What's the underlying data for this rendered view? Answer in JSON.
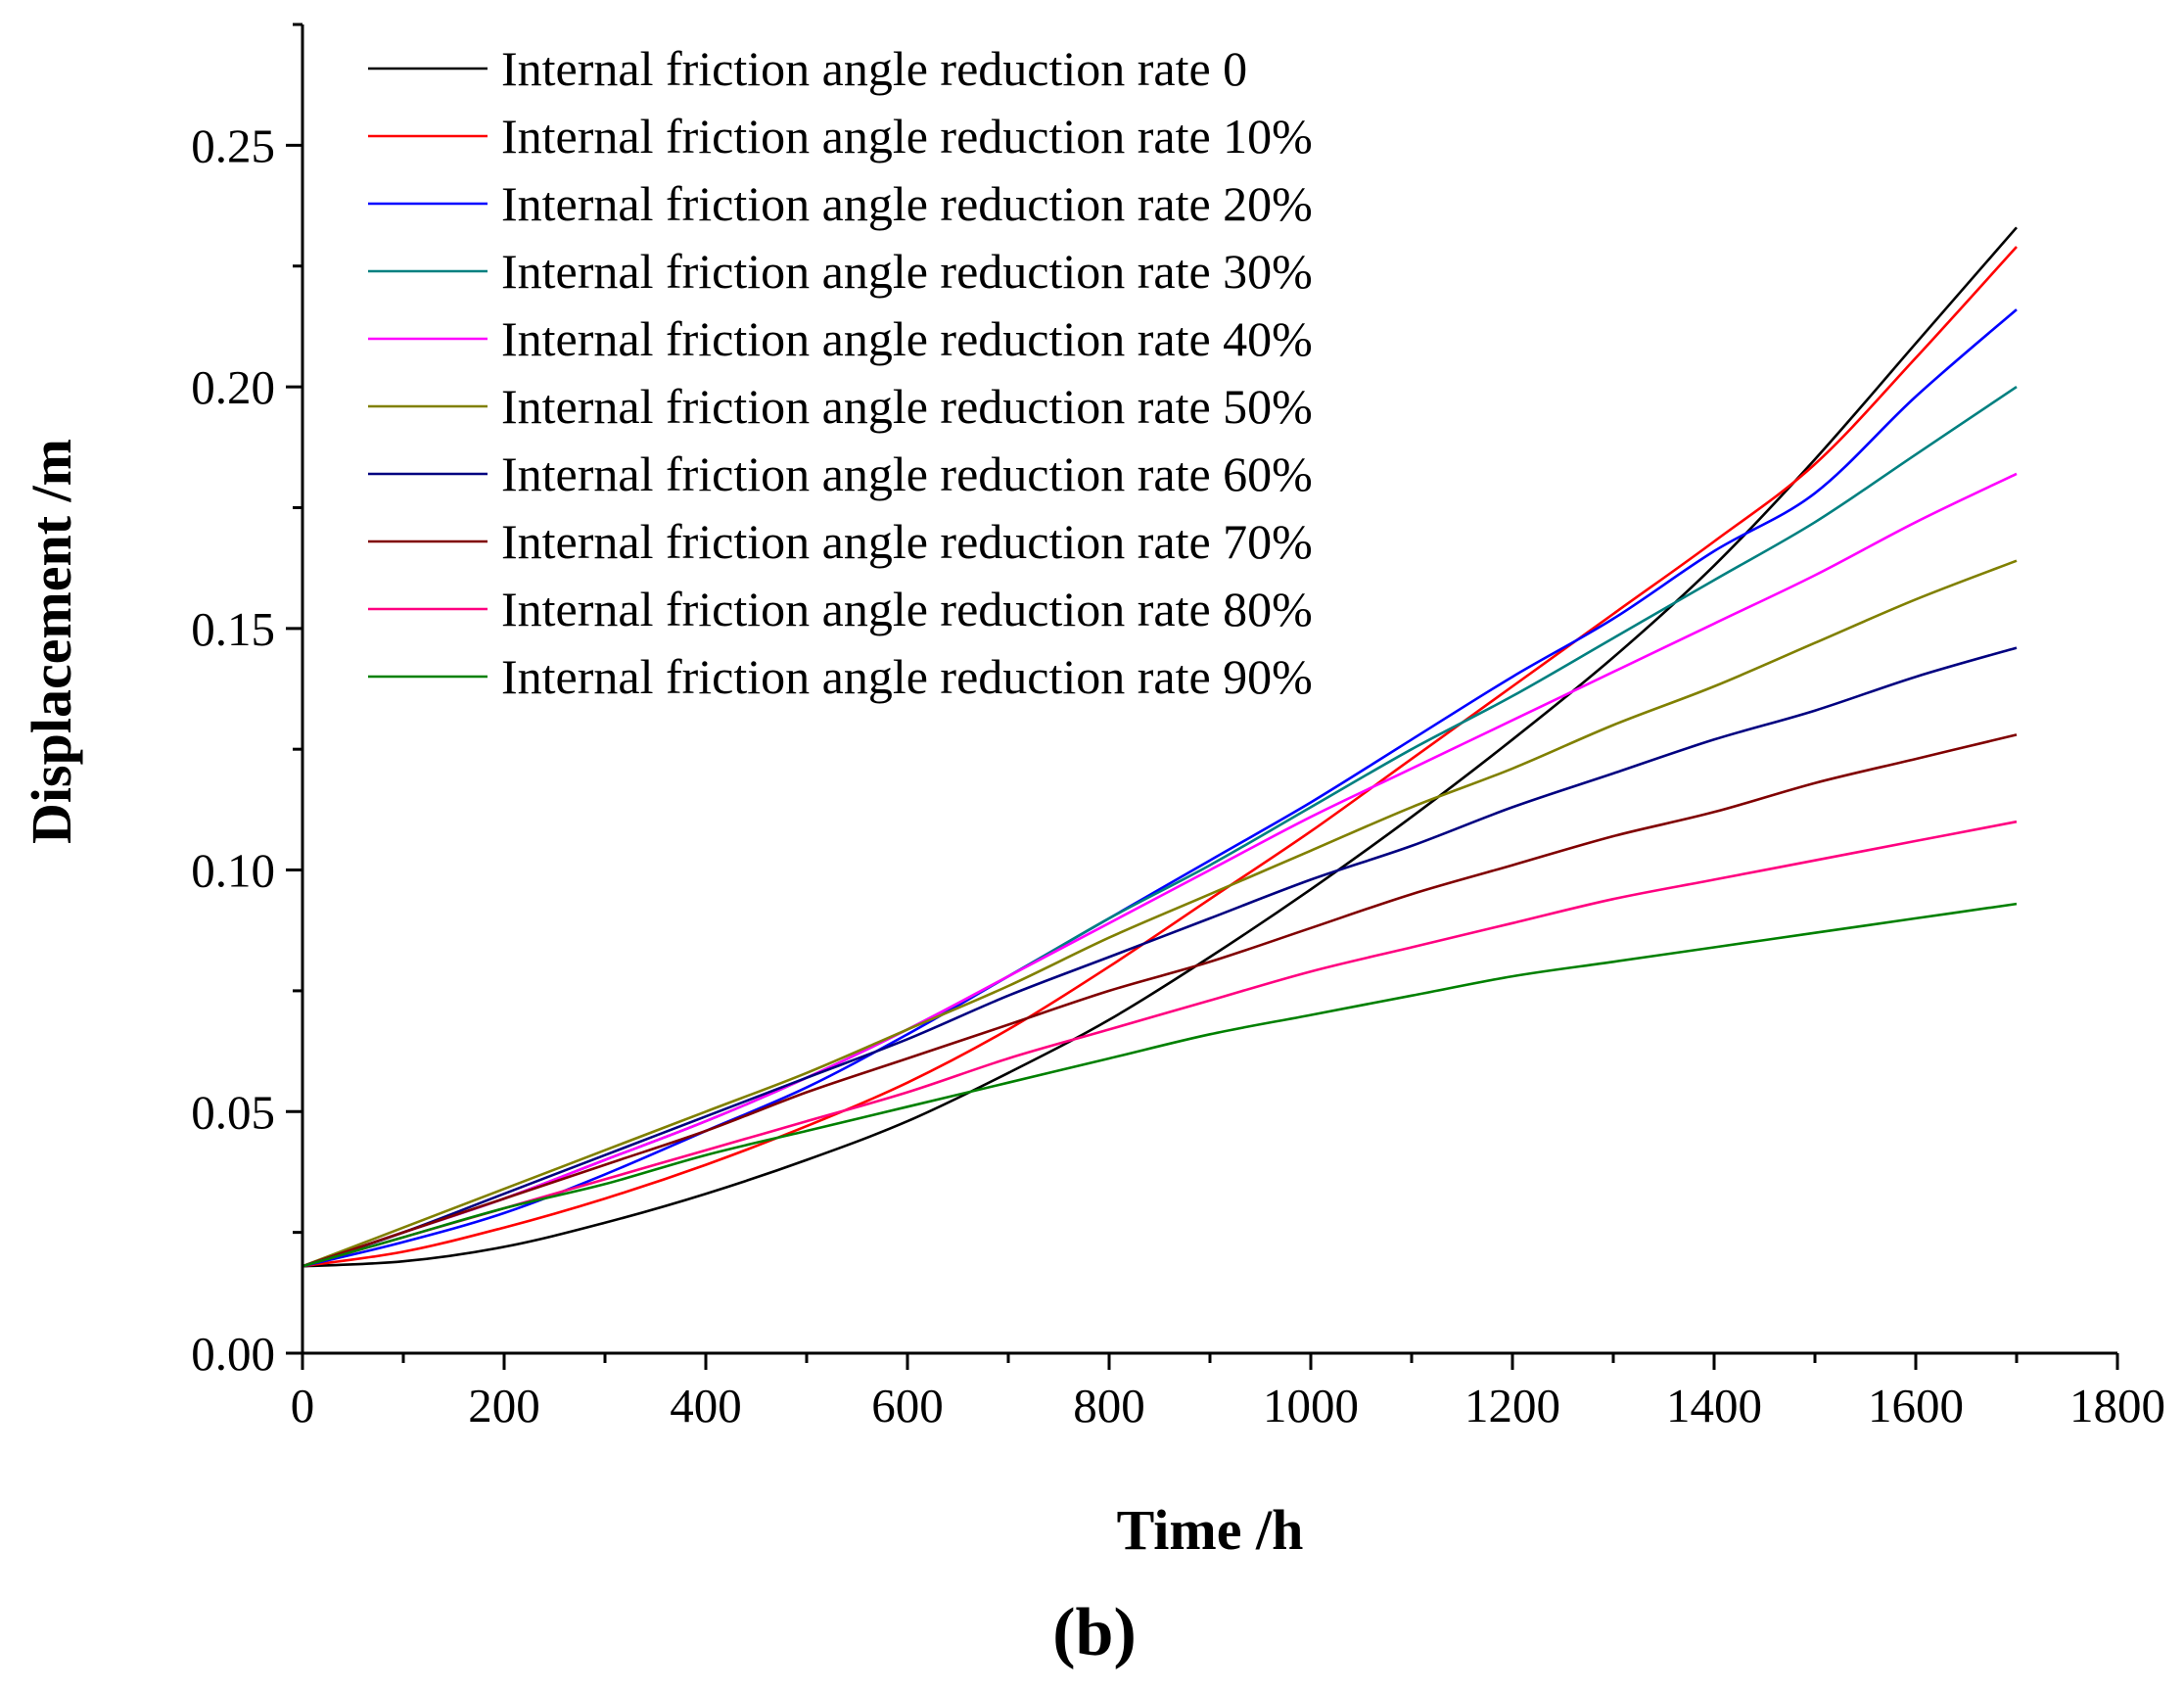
{
  "chart_data": {
    "type": "line",
    "title": "",
    "xlabel": "Time /h",
    "ylabel": "Displacement /m",
    "panel_label": "(b)",
    "xlim": [
      0,
      1800
    ],
    "ylim": [
      0,
      0.275
    ],
    "xticks": [
      0,
      200,
      400,
      600,
      800,
      1000,
      1200,
      1400,
      1600,
      1800
    ],
    "xtick_labels": [
      "0",
      "200",
      "400",
      "600",
      "800",
      "1000",
      "1200",
      "1400",
      "1600",
      "1800"
    ],
    "yticks": [
      0,
      0.05,
      0.1,
      0.15,
      0.2,
      0.25
    ],
    "ytick_labels": [
      "0.00",
      "0.05",
      "0.10",
      "0.15",
      "0.20",
      "0.25"
    ],
    "legend_position": "top-left",
    "grid": false,
    "x": [
      0,
      100,
      200,
      300,
      400,
      500,
      600,
      700,
      800,
      900,
      1000,
      1100,
      1200,
      1300,
      1400,
      1500,
      1600,
      1700
    ],
    "series": [
      {
        "name": "Internal friction angle reduction rate 0",
        "color": "#000000",
        "values": [
          0.018,
          0.019,
          0.022,
          0.027,
          0.033,
          0.04,
          0.048,
          0.058,
          0.069,
          0.082,
          0.096,
          0.111,
          0.127,
          0.144,
          0.163,
          0.185,
          0.209,
          0.233
        ]
      },
      {
        "name": "Internal friction angle reduction rate 10%",
        "color": "#ff0000",
        "values": [
          0.018,
          0.021,
          0.026,
          0.032,
          0.039,
          0.047,
          0.056,
          0.067,
          0.08,
          0.094,
          0.108,
          0.123,
          0.138,
          0.153,
          0.168,
          0.184,
          0.206,
          0.229
        ]
      },
      {
        "name": "Internal friction angle reduction rate 20%",
        "color": "#0000ff",
        "values": [
          0.018,
          0.023,
          0.029,
          0.037,
          0.046,
          0.055,
          0.066,
          0.078,
          0.09,
          0.102,
          0.114,
          0.127,
          0.14,
          0.152,
          0.166,
          0.178,
          0.198,
          0.216
        ]
      },
      {
        "name": "Internal friction angle reduction rate 30%",
        "color": "#008080",
        "values": [
          0.018,
          0.025,
          0.032,
          0.04,
          0.048,
          0.057,
          0.067,
          0.078,
          0.09,
          0.101,
          0.113,
          0.125,
          0.136,
          0.148,
          0.16,
          0.172,
          0.186,
          0.2
        ]
      },
      {
        "name": "Internal friction angle reduction rate 40%",
        "color": "#ff00ff",
        "values": [
          0.018,
          0.025,
          0.032,
          0.04,
          0.048,
          0.057,
          0.067,
          0.078,
          0.089,
          0.1,
          0.111,
          0.121,
          0.131,
          0.141,
          0.151,
          0.161,
          0.172,
          0.182
        ]
      },
      {
        "name": "Internal friction angle reduction rate 50%",
        "color": "#808000",
        "values": [
          0.018,
          0.026,
          0.034,
          0.042,
          0.05,
          0.058,
          0.067,
          0.076,
          0.086,
          0.095,
          0.104,
          0.113,
          0.121,
          0.13,
          0.138,
          0.147,
          0.156,
          0.164
        ]
      },
      {
        "name": "Internal friction angle reduction rate 60%",
        "color": "#000080",
        "values": [
          0.018,
          0.025,
          0.033,
          0.041,
          0.049,
          0.057,
          0.065,
          0.074,
          0.082,
          0.09,
          0.098,
          0.105,
          0.113,
          0.12,
          0.127,
          0.133,
          0.14,
          0.146
        ]
      },
      {
        "name": "Internal friction angle reduction rate 70%",
        "color": "#800000",
        "values": [
          0.018,
          0.025,
          0.032,
          0.039,
          0.046,
          0.054,
          0.061,
          0.068,
          0.075,
          0.081,
          0.088,
          0.095,
          0.101,
          0.107,
          0.112,
          0.118,
          0.123,
          0.128
        ]
      },
      {
        "name": "Internal friction angle reduction rate 80%",
        "color": "#ff0080",
        "values": [
          0.018,
          0.024,
          0.03,
          0.036,
          0.042,
          0.048,
          0.054,
          0.061,
          0.067,
          0.073,
          0.079,
          0.084,
          0.089,
          0.094,
          0.098,
          0.102,
          0.106,
          0.11
        ]
      },
      {
        "name": "Internal friction angle reduction rate 90%",
        "color": "#008000",
        "values": [
          0.018,
          0.024,
          0.03,
          0.035,
          0.041,
          0.046,
          0.051,
          0.056,
          0.061,
          0.066,
          0.07,
          0.074,
          0.078,
          0.081,
          0.084,
          0.087,
          0.09,
          0.093
        ]
      }
    ]
  }
}
